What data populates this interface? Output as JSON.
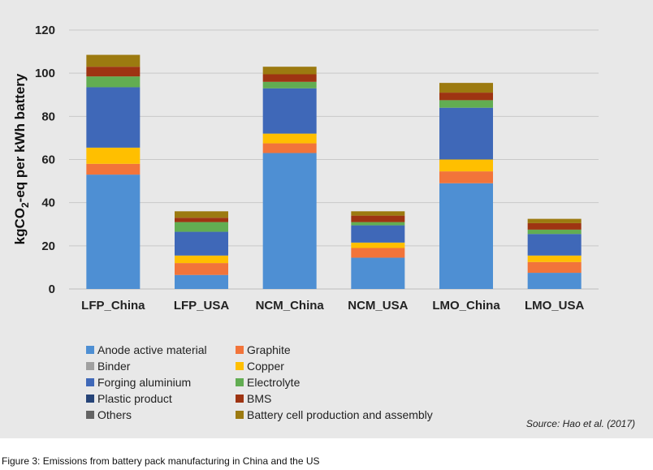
{
  "chart_data": {
    "type": "bar",
    "stacked": true,
    "ylabel_main": "kgCO",
    "ylabel_sub": "2",
    "ylabel_rest": "-eq per kWh battery",
    "ylim": [
      0,
      120
    ],
    "yticks": [
      0,
      20,
      40,
      60,
      80,
      100,
      120
    ],
    "grid": true,
    "legend_position": "bottom",
    "categories": [
      "LFP_China",
      "LFP_USA",
      "NCM_China",
      "NCM_USA",
      "LMO_China",
      "LMO_USA"
    ],
    "series": [
      {
        "name": "Anode active material",
        "color": "#4e8fd3",
        "values": [
          53,
          6.5,
          63,
          14.5,
          49,
          7.5
        ]
      },
      {
        "name": "Graphite",
        "color": "#f2743a",
        "values": [
          5,
          5.5,
          4.5,
          4.5,
          5.5,
          5
        ]
      },
      {
        "name": "Binder",
        "color": "#a0a0a0",
        "values": [
          0,
          0,
          0,
          0,
          0,
          0
        ]
      },
      {
        "name": "Copper",
        "color": "#ffbf00",
        "values": [
          7.5,
          3.5,
          4.5,
          2.5,
          5.5,
          3
        ]
      },
      {
        "name": "Forging aluminium",
        "color": "#3f68b8",
        "values": [
          28,
          11,
          21,
          8,
          24,
          10
        ]
      },
      {
        "name": "Electrolyte",
        "color": "#62ad52",
        "values": [
          5,
          4.5,
          3,
          1.5,
          3.5,
          2
        ]
      },
      {
        "name": "Plastic product",
        "color": "#264478",
        "values": [
          0,
          0,
          0,
          0,
          0,
          0
        ]
      },
      {
        "name": "BMS",
        "color": "#9e3412",
        "values": [
          4.5,
          2,
          3.5,
          3,
          3.5,
          3
        ]
      },
      {
        "name": "Others",
        "color": "#646464",
        "values": [
          0,
          0,
          0,
          0,
          0,
          0
        ]
      },
      {
        "name": "Battery cell production and assembly",
        "color": "#9c7a10",
        "values": [
          5.5,
          3,
          3.5,
          2,
          4.5,
          2
        ]
      }
    ]
  },
  "source": "Source: Hao et al. (2017)",
  "caption": "Figure 3: Emissions from battery pack manufacturing in China and the US"
}
